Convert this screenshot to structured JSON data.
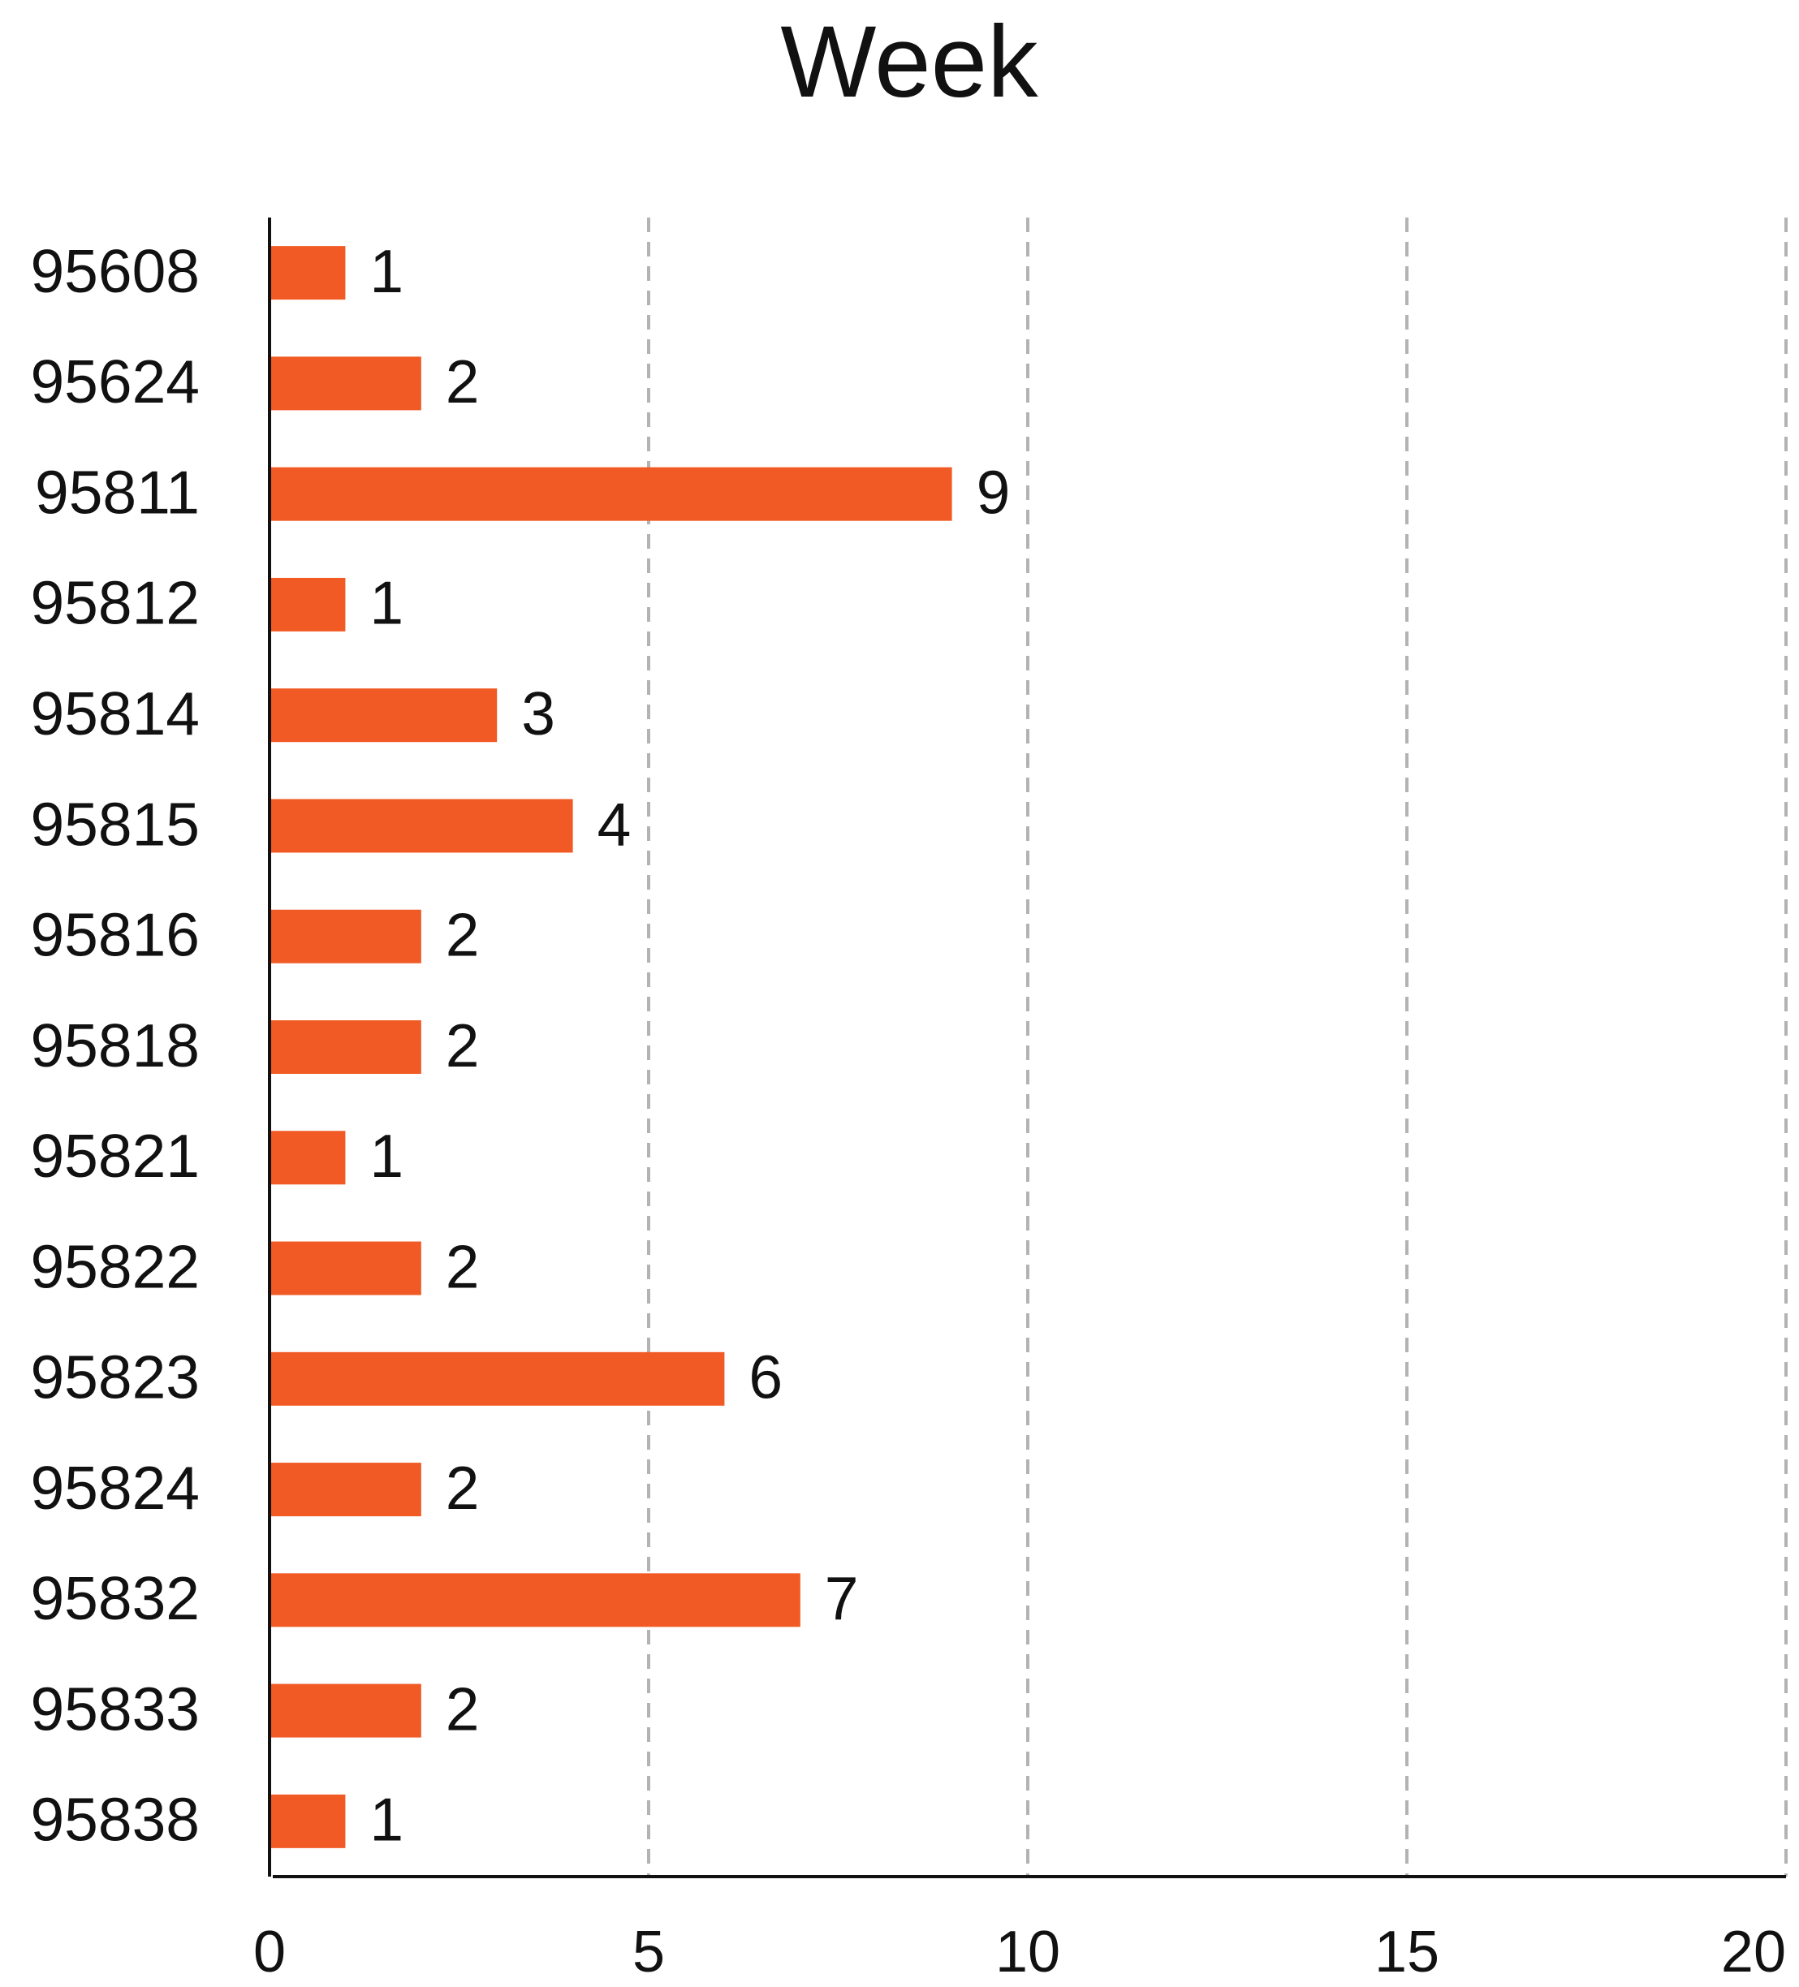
{
  "chart_data": {
    "type": "bar",
    "orientation": "horizontal",
    "title": "Week",
    "categories": [
      "95608",
      "95624",
      "95811",
      "95812",
      "95814",
      "95815",
      "95816",
      "95818",
      "95821",
      "95822",
      "95823",
      "95824",
      "95832",
      "95833",
      "95838"
    ],
    "values": [
      1,
      2,
      9,
      1,
      3,
      4,
      2,
      2,
      1,
      2,
      6,
      2,
      7,
      2,
      1
    ],
    "color": "#f15a24",
    "xlim": [
      0,
      20
    ],
    "xticks": [
      0,
      5,
      10,
      15,
      20
    ],
    "grid": true
  }
}
